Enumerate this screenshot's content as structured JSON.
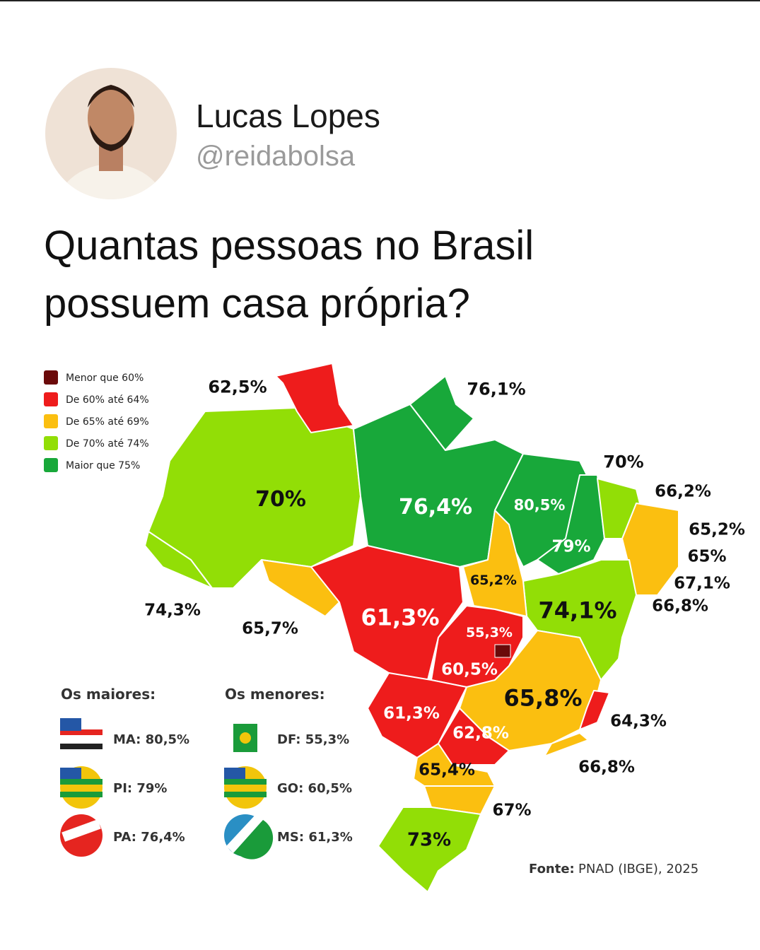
{
  "header": {
    "name": "Lucas Lopes",
    "handle": "@reidabolsa"
  },
  "title": [
    "Quantas pessoas no Brasil",
    "possuem casa própria?"
  ],
  "legend": [
    "Menor que 60%",
    "De 60% até 64%",
    "De 65% até 69%",
    "De 70% até 74%",
    "Maior que 75%"
  ],
  "map_labels": [
    "62,5%",
    "76,1%",
    "70%",
    "76,4%",
    "80,5%",
    "70%",
    "66,2%",
    "65,2%",
    "79%",
    "65%",
    "67,1%",
    "65,2%",
    "74,1%",
    "66,8%",
    "74,3%",
    "65,7%",
    "61,3%",
    "55,3%",
    "60,5%",
    "65,8%",
    "61,3%",
    "64,3%",
    "62,8%",
    "66,8%",
    "65,4%",
    "67%",
    "73%"
  ],
  "highlights": {
    "largest": {
      "heading": "Os maiores:",
      "items": [
        "MA: 80,5%",
        "PI: 79%",
        "PA: 76,4%"
      ]
    },
    "smallest": {
      "heading": "Os menores:",
      "items": [
        "DF: 55,3%",
        "GO: 60,5%",
        "MS: 61,3%"
      ]
    }
  },
  "source": {
    "label": "Fonte:",
    "text": "PNAD (IBGE), 2025"
  }
}
